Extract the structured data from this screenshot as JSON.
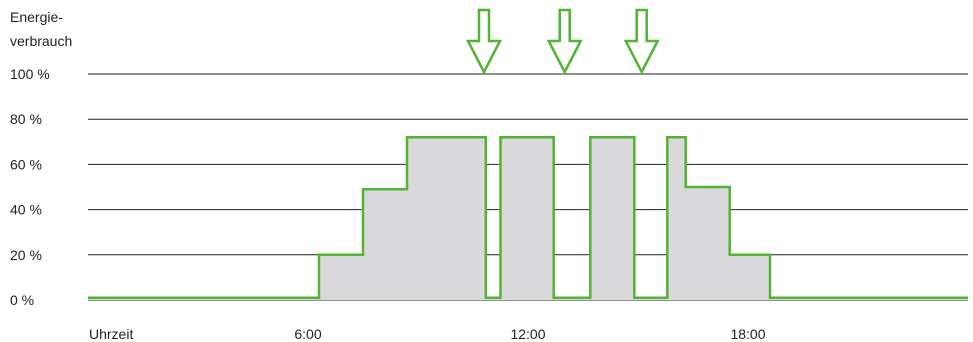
{
  "chart_data": {
    "type": "area",
    "ylabel_lines": [
      "Energie-",
      "verbrauch"
    ],
    "xlabel": "Uhrzeit",
    "x_ticks": [
      {
        "x": 6,
        "label": "6:00"
      },
      {
        "x": 12,
        "label": "12:00"
      },
      {
        "x": 18,
        "label": "18:00"
      }
    ],
    "y_ticks": [
      {
        "y": 0,
        "label": "0 %"
      },
      {
        "y": 20,
        "label": "20 %"
      },
      {
        "x": 0,
        "y": 40,
        "label": "40 %"
      },
      {
        "y": 60,
        "label": "60 %"
      },
      {
        "y": 80,
        "label": "80 %"
      },
      {
        "y": 100,
        "label": "100 %"
      }
    ],
    "xlim": [
      0,
      24
    ],
    "ylim": [
      0,
      100
    ],
    "grid": true,
    "series": [
      {
        "points": [
          [
            0,
            1
          ],
          [
            6.3,
            1
          ],
          [
            6.3,
            20
          ],
          [
            7.5,
            20
          ],
          [
            7.5,
            49
          ],
          [
            8.7,
            49
          ],
          [
            8.7,
            72
          ],
          [
            10.85,
            72
          ],
          [
            10.85,
            1
          ],
          [
            11.25,
            1
          ],
          [
            11.25,
            72
          ],
          [
            12.7,
            72
          ],
          [
            12.7,
            1
          ],
          [
            13.7,
            1
          ],
          [
            13.7,
            72
          ],
          [
            14.9,
            72
          ],
          [
            14.9,
            1
          ],
          [
            15.8,
            1
          ],
          [
            15.8,
            72
          ],
          [
            16.3,
            72
          ],
          [
            16.3,
            50
          ],
          [
            17.5,
            50
          ],
          [
            17.5,
            20
          ],
          [
            18.6,
            20
          ],
          [
            18.6,
            1
          ],
          [
            24,
            1
          ]
        ]
      }
    ],
    "arrows_at_x": [
      10.8,
      13.0,
      15.1
    ],
    "colors": {
      "line": "#52b334",
      "fill": "#d9d9db",
      "grid": "#222222"
    }
  }
}
